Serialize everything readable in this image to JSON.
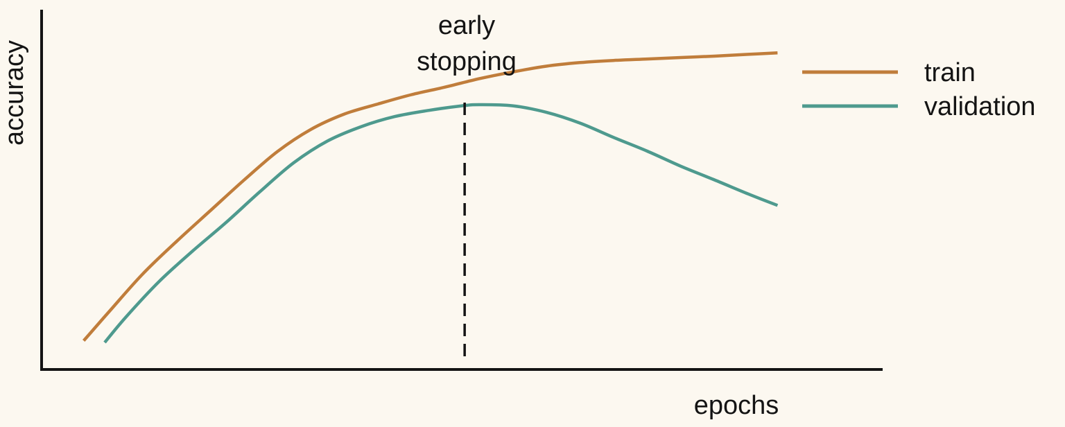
{
  "chart_data": {
    "type": "line",
    "xlabel": "epochs",
    "ylabel": "accuracy",
    "xlim": [
      0,
      100
    ],
    "ylim": [
      0,
      100
    ],
    "axis_ticks": false,
    "grid": false,
    "legend_position": "top-right",
    "series": [
      {
        "name": "train",
        "color": "#c07d3b",
        "x": [
          5,
          8,
          12,
          16,
          20,
          24,
          28,
          32,
          36,
          40,
          44,
          48,
          52,
          56,
          60,
          64,
          68,
          72,
          76,
          80,
          84,
          87.5
        ],
        "y": [
          8,
          16,
          26.5,
          35.5,
          44,
          52.5,
          60.5,
          66.7,
          71,
          73.8,
          76.4,
          78.5,
          80.8,
          82.7,
          84.3,
          85.3,
          85.9,
          86.3,
          86.7,
          87.1,
          87.6,
          88
        ]
      },
      {
        "name": "validation",
        "color": "#4e9a8e",
        "x": [
          7.5,
          10,
          14,
          18,
          22,
          26,
          30,
          34,
          38,
          42,
          46,
          50,
          52,
          56,
          60,
          64,
          68,
          72,
          76,
          80,
          84,
          87.5
        ],
        "y": [
          7.5,
          14.5,
          24.5,
          33,
          41,
          49.5,
          57.5,
          63.5,
          67.5,
          70.3,
          72,
          73.3,
          73.6,
          73.3,
          71.5,
          68.5,
          64.5,
          60.7,
          56.5,
          52.7,
          48.8,
          45.6
        ]
      }
    ],
    "annotations": [
      {
        "text_lines": [
          "early",
          "stopping"
        ],
        "x": 50.3,
        "style": "dashed vertical line",
        "color": "#141414"
      }
    ]
  }
}
